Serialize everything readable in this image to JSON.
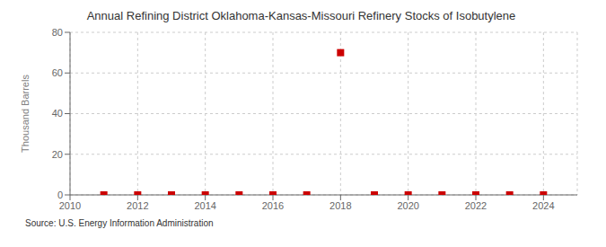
{
  "chart_data": {
    "type": "scatter",
    "title": "Annual Refining District Oklahoma-Kansas-Missouri Refinery Stocks of Isobutylene",
    "ylabel": "Thousand Barrels",
    "annotations": [
      "Source: U.S. Energy Information Administration"
    ],
    "x": [
      2011,
      2012,
      2013,
      2014,
      2015,
      2016,
      2017,
      2018,
      2019,
      2020,
      2021,
      2022,
      2023,
      2024
    ],
    "values": [
      0,
      0,
      0,
      0,
      0,
      0,
      0,
      70,
      0,
      0,
      0,
      0,
      0,
      0
    ],
    "color": "#cc0000",
    "marker": "square",
    "xlim": [
      2010,
      2025
    ],
    "ylim": [
      0,
      80
    ],
    "xticks": [
      2010,
      2012,
      2014,
      2016,
      2018,
      2020,
      2022,
      2024
    ],
    "yticks": [
      0,
      20,
      40,
      60,
      80
    ],
    "grid": true
  }
}
